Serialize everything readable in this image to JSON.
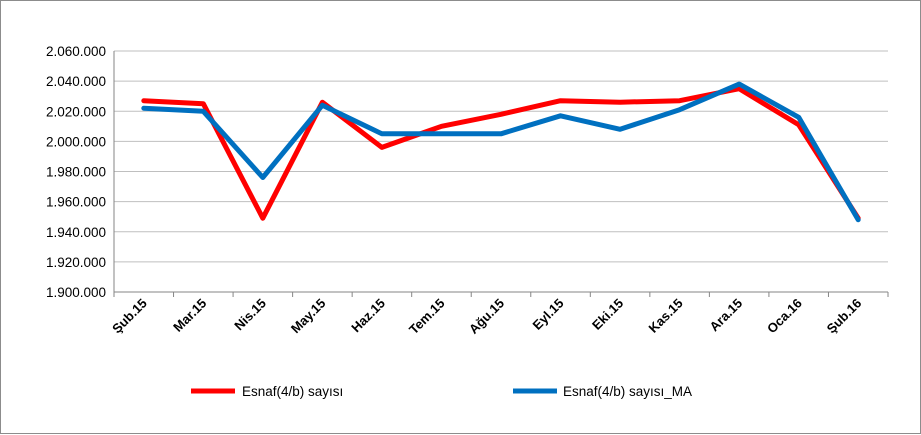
{
  "chart_data": {
    "type": "line",
    "categories": [
      "Şub.15",
      "Mar.15",
      "Nis.15",
      "May.15",
      "Haz.15",
      "Tem.15",
      "Ağu.15",
      "Eyl.15",
      "Eki.15",
      "Kas.15",
      "Ara.15",
      "Oca.16",
      "Şub.16"
    ],
    "ylim": [
      1900000,
      2060000
    ],
    "yticks": [
      1900000,
      1920000,
      1940000,
      1960000,
      1980000,
      2000000,
      2020000,
      2040000,
      2060000
    ],
    "ytick_labels": [
      "1.900.000",
      "1.920.000",
      "1.940.000",
      "1.960.000",
      "1.980.000",
      "2.000.000",
      "2.020.000",
      "2.040.000",
      "2.060.000"
    ],
    "grid": true,
    "legend_position": "bottom",
    "series": [
      {
        "name": "Esnaf(4/b) sayısı",
        "color": "#ff0000",
        "values": [
          2027000,
          2025000,
          1949000,
          2026000,
          1996000,
          2010000,
          2018000,
          2027000,
          2026000,
          2027000,
          2035000,
          2011000,
          1949000
        ]
      },
      {
        "name": "Esnaf(4/b) sayısı_MA",
        "color": "#0070c0",
        "values": [
          2022000,
          2020000,
          1976000,
          2024000,
          2005000,
          2005000,
          2005000,
          2017000,
          2008000,
          2021000,
          2038000,
          2016000,
          1948000
        ]
      }
    ]
  }
}
